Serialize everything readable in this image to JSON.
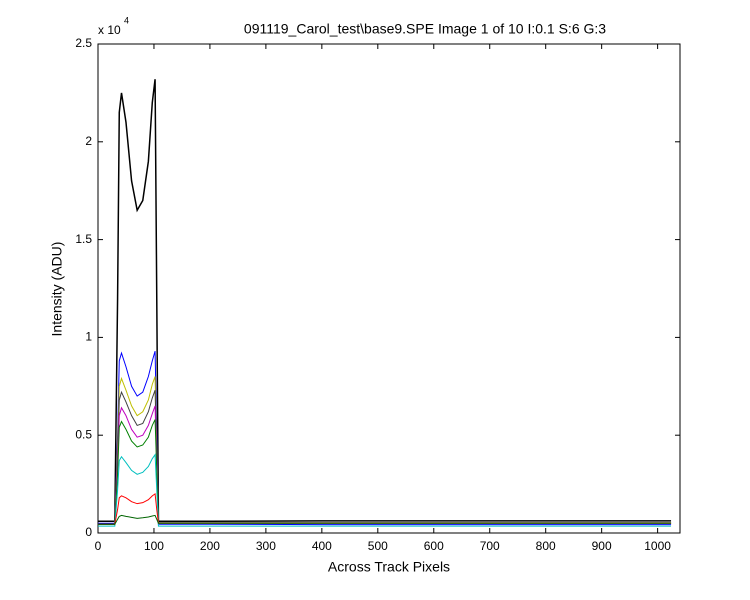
{
  "chart_data": {
    "type": "line",
    "title": "091119_Carol_test\\base9.SPE  Image 1 of 10  I:0.1  S:6  G:3",
    "x_label": "Across Track Pixels",
    "y_label": "Intensity (ADU)",
    "y_multiplier": {
      "base": "x 10",
      "exponent": "4"
    },
    "x": [
      0,
      30,
      35,
      38,
      42,
      50,
      60,
      70,
      80,
      90,
      97,
      102,
      105,
      108,
      200,
      400,
      600,
      800,
      1024
    ],
    "series": [
      {
        "color": "#000000",
        "values": [
          600,
          600,
          12000,
          21500,
          22500,
          21000,
          18000,
          16500,
          17000,
          19000,
          22000,
          23200,
          12000,
          600,
          600,
          620,
          620,
          620,
          620
        ]
      },
      {
        "color": "#0000ff",
        "values": [
          500,
          500,
          5000,
          8800,
          9200,
          8500,
          7500,
          7000,
          7200,
          8000,
          8800,
          9300,
          5000,
          450,
          450,
          430,
          430,
          430,
          430
        ]
      },
      {
        "color": "#bfbf00",
        "values": [
          450,
          450,
          4500,
          7500,
          7900,
          7300,
          6500,
          6000,
          6200,
          6800,
          7600,
          8000,
          4300,
          500,
          500,
          500,
          500,
          500,
          500
        ]
      },
      {
        "color": "#404040",
        "values": [
          450,
          450,
          4000,
          6800,
          7200,
          6700,
          6000,
          5500,
          5600,
          6200,
          6900,
          7300,
          4000,
          520,
          520,
          520,
          520,
          520,
          520
        ]
      },
      {
        "color": "#bf00bf",
        "values": [
          450,
          450,
          3500,
          6000,
          6400,
          6000,
          5300,
          4900,
          5000,
          5500,
          6100,
          6500,
          3500,
          520,
          520,
          520,
          520,
          520,
          520
        ]
      },
      {
        "color": "#008000",
        "values": [
          450,
          450,
          3000,
          5400,
          5700,
          5300,
          4700,
          4400,
          4500,
          4900,
          5500,
          5800,
          3200,
          520,
          520,
          520,
          520,
          520,
          520
        ]
      },
      {
        "color": "#00bfbf",
        "values": [
          350,
          350,
          2200,
          3700,
          3900,
          3600,
          3200,
          3000,
          3100,
          3400,
          3800,
          4000,
          2200,
          350,
          350,
          350,
          350,
          350,
          350
        ]
      },
      {
        "color": "#ff0000",
        "values": [
          450,
          450,
          1200,
          1800,
          1900,
          1800,
          1600,
          1500,
          1550,
          1700,
          1900,
          2000,
          1200,
          500,
          500,
          500,
          500,
          500,
          500
        ]
      },
      {
        "color": "#006400",
        "values": [
          450,
          450,
          700,
          850,
          900,
          850,
          800,
          750,
          780,
          820,
          870,
          900,
          700,
          500,
          500,
          500,
          500,
          500,
          500
        ]
      }
    ],
    "xlim": [
      0,
      1040
    ],
    "ylim": [
      0,
      25000
    ],
    "xticks": [
      0,
      100,
      200,
      300,
      400,
      500,
      600,
      700,
      800,
      900,
      1000
    ],
    "yticks": [
      0,
      {
        "value": 5000,
        "label": "0.5"
      },
      {
        "value": 10000,
        "label": "1"
      },
      {
        "value": 15000,
        "label": "1.5"
      },
      {
        "value": 20000,
        "label": "2"
      },
      {
        "value": 25000,
        "label": "2.5"
      }
    ]
  }
}
